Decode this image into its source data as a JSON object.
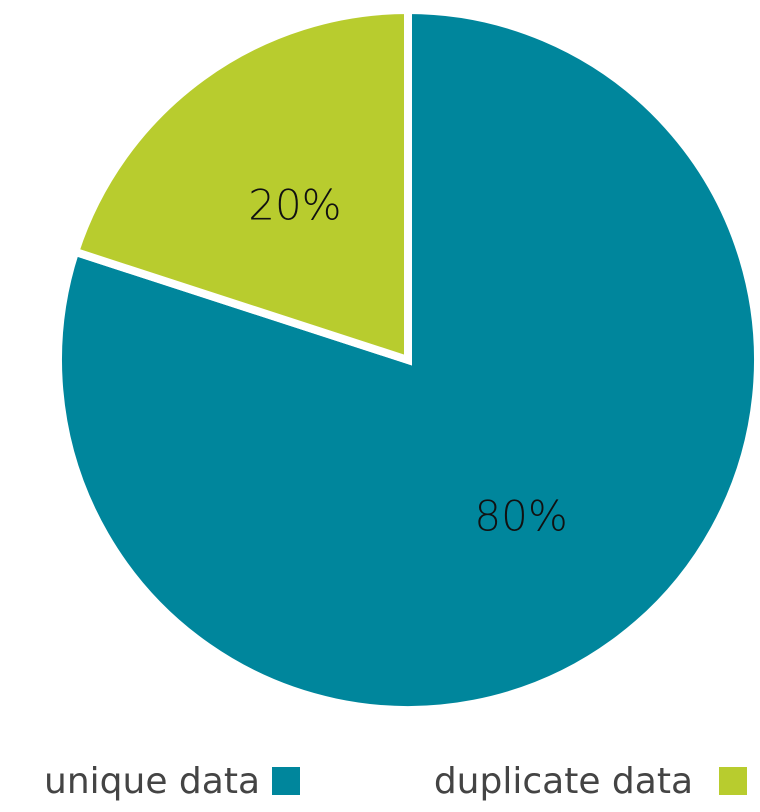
{
  "chart_data": {
    "type": "pie",
    "categories": [
      "unique data",
      "duplicate data"
    ],
    "values": [
      80,
      20
    ],
    "data_labels": [
      "80%",
      "20%"
    ],
    "colors": [
      "#00869c",
      "#b8cc2e"
    ],
    "start_angle_deg": 0,
    "direction": "clockwise",
    "legend_position": "bottom",
    "legend": [
      {
        "label": "unique data",
        "color": "#00869c"
      },
      {
        "label": "duplicate data",
        "color": "#b8cc2e"
      }
    ]
  }
}
